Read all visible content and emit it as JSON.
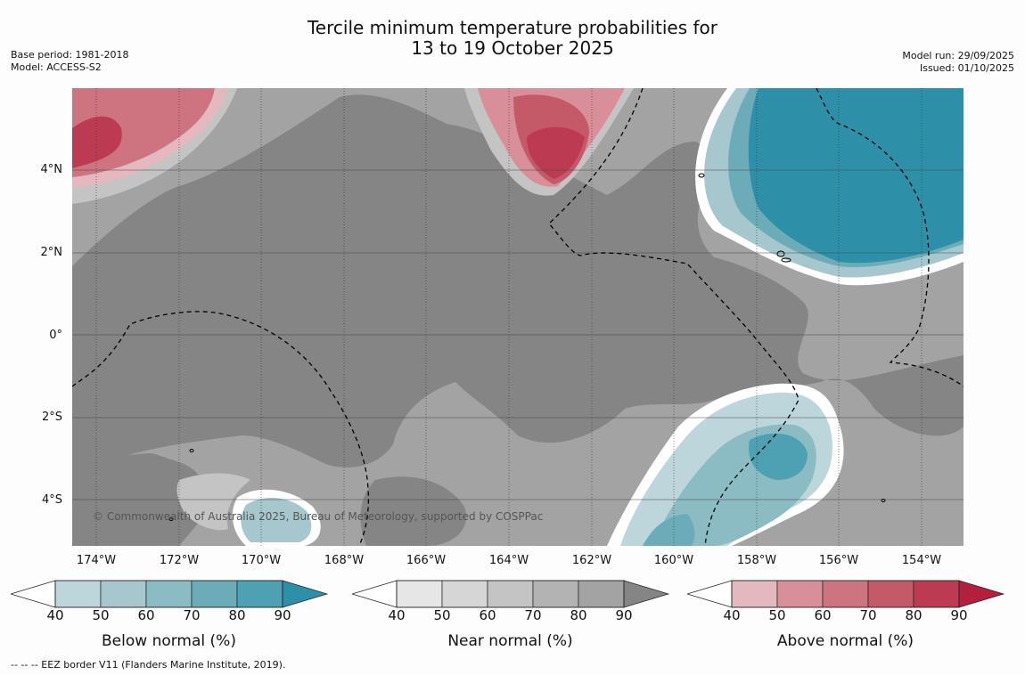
{
  "title": {
    "line1": "Tercile minimum temperature probabilities for",
    "line2": "13 to 19 October 2025"
  },
  "meta_left": {
    "base_period": "Base period: 1981-2018",
    "model": "Model: ACCESS-S2"
  },
  "meta_right": {
    "model_run": "Model run: 29/09/2025",
    "issued": "Issued: 01/10/2025"
  },
  "map": {
    "copyright": "© Commonwealth of Australia 2025, Bureau of Meteorology, supported by COSPPac",
    "lat_labels": [
      "4°N",
      "2°N",
      "0°",
      "2°S",
      "4°S"
    ],
    "lon_labels": [
      "174°W",
      "172°W",
      "170°W",
      "168°W",
      "166°W",
      "164°W",
      "162°W",
      "160°W",
      "158°W",
      "156°W",
      "154°W"
    ],
    "colors": {
      "near_dark": "#858585",
      "near_mid": "#a3a3a3",
      "below_max": "#2e90a8",
      "above_max": "#b72f45"
    }
  },
  "colorbars": [
    {
      "label": "Below normal (%)",
      "ticks": [
        "40",
        "50",
        "60",
        "70",
        "80",
        "90"
      ],
      "colors": [
        "#bdd6dc",
        "#a6c7ce",
        "#8bbbc3",
        "#6cacb9",
        "#4da1b2",
        "#2e90a8"
      ]
    },
    {
      "label": "Near normal (%)",
      "ticks": [
        "40",
        "50",
        "60",
        "70",
        "80",
        "90"
      ],
      "colors": [
        "#e6e6e6",
        "#d6d6d6",
        "#c4c4c4",
        "#b3b3b3",
        "#a3a3a3",
        "#858585"
      ]
    },
    {
      "label": "Above normal (%)",
      "ticks": [
        "40",
        "50",
        "60",
        "70",
        "80",
        "90"
      ],
      "colors": [
        "#e3b8bf",
        "#d88f9a",
        "#ce7480",
        "#c45a68",
        "#bd3b52",
        "#b31f3d"
      ]
    }
  ],
  "footer": "--  --  -- EEZ border V11 (Flanders Marine Institute, 2019)."
}
